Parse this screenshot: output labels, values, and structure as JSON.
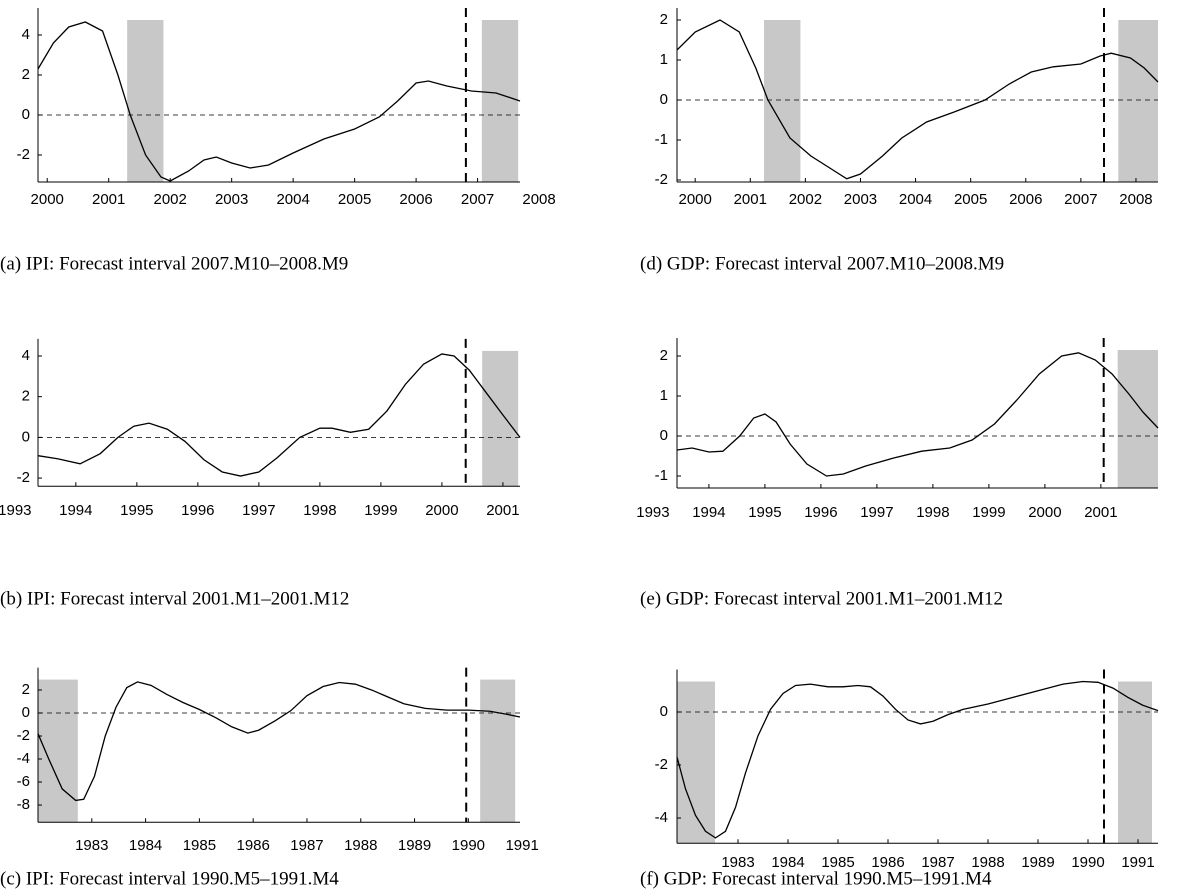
{
  "chart_data": [
    {
      "type": "line",
      "caption": "(a) IPI: Forecast interval 2007.M10–2008.M9",
      "color": "#000000",
      "band_color": "#c8c8c8",
      "x": [
        1999.85,
        2000.1,
        2000.35,
        2000.62,
        2000.9,
        2001.15,
        2001.35,
        2001.6,
        2001.85,
        2002.0,
        2002.3,
        2002.55,
        2002.75,
        2003.0,
        2003.3,
        2003.6,
        2004.0,
        2004.5,
        2005.0,
        2005.4,
        2005.7,
        2006.0,
        2006.2,
        2006.5,
        2006.9,
        2007.3,
        2007.69
      ],
      "values": [
        2.3,
        3.6,
        4.4,
        4.65,
        4.2,
        2.0,
        0,
        -2.0,
        -3.1,
        -3.3,
        -2.8,
        -2.25,
        -2.1,
        -2.4,
        -2.65,
        -2.5,
        -1.9,
        -1.2,
        -0.7,
        -0.1,
        0.7,
        1.6,
        1.7,
        1.45,
        1.2,
        1.1,
        0.7
      ],
      "xlim": [
        1999.85,
        2007.69
      ],
      "ylim": [
        -3.35,
        4.75
      ],
      "xticks": [
        2000,
        2001,
        2002,
        2003,
        2004,
        2005,
        2006,
        2007,
        2008
      ],
      "yticks": [
        -2,
        0,
        2,
        4
      ],
      "shaded": [
        [
          2001.3,
          2001.89
        ],
        [
          2007.07,
          2007.66
        ]
      ],
      "vline": 2006.81,
      "hline": 0
    },
    {
      "type": "line",
      "caption": "(b) IPI: Forecast interval 2001.M1–2001.M12",
      "color": "#000000",
      "band_color": "#c8c8c8",
      "x": [
        1993.38,
        1993.7,
        1994.07,
        1994.4,
        1994.69,
        1994.95,
        1995.2,
        1995.5,
        1995.79,
        1996.1,
        1996.4,
        1996.7,
        1997.0,
        1997.3,
        1997.67,
        1998.0,
        1998.2,
        1998.5,
        1998.8,
        1999.1,
        1999.4,
        1999.7,
        2000.0,
        2000.2,
        2000.45,
        2000.7,
        2001.0,
        2001.28
      ],
      "values": [
        -0.9,
        -1.05,
        -1.3,
        -0.8,
        0.0,
        0.55,
        0.7,
        0.4,
        -0.2,
        -1.1,
        -1.7,
        -1.9,
        -1.7,
        -1.0,
        0.0,
        0.45,
        0.45,
        0.25,
        0.4,
        1.3,
        2.6,
        3.6,
        4.1,
        4.0,
        3.3,
        2.3,
        1.1,
        0.0
      ],
      "xlim": [
        1993.38,
        2001.28
      ],
      "ylim": [
        -2.4,
        4.25
      ],
      "xticks": [
        1993,
        1994,
        1995,
        1996,
        1997,
        1998,
        1999,
        2000,
        2001
      ],
      "yticks": [
        -2,
        0,
        2,
        4
      ],
      "shaded": [
        [
          2000.66,
          2001.25
        ]
      ],
      "vline": 2000.39,
      "hline": 0
    },
    {
      "type": "line",
      "caption": "(c) IPI: Forecast interval 1990.M5–1991.M4",
      "color": "#000000",
      "band_color": "#c8c8c8",
      "x": [
        1982.0,
        1982.2,
        1982.45,
        1982.7,
        1982.85,
        1983.05,
        1983.25,
        1983.45,
        1983.65,
        1983.85,
        1984.1,
        1984.4,
        1984.7,
        1985.0,
        1985.3,
        1985.6,
        1985.9,
        1986.1,
        1986.4,
        1986.7,
        1987.0,
        1987.3,
        1987.6,
        1987.9,
        1988.2,
        1988.5,
        1988.8,
        1989.2,
        1989.6,
        1990.0,
        1990.4,
        1990.7,
        1990.96
      ],
      "values": [
        -1.8,
        -4.0,
        -6.6,
        -7.6,
        -7.5,
        -5.5,
        -2.0,
        0.5,
        2.2,
        2.7,
        2.4,
        1.6,
        0.9,
        0.3,
        -0.4,
        -1.2,
        -1.75,
        -1.5,
        -0.7,
        0.2,
        1.5,
        2.3,
        2.65,
        2.5,
        2.0,
        1.4,
        0.8,
        0.4,
        0.25,
        0.25,
        0.15,
        -0.1,
        -0.35
      ],
      "xlim": [
        1982.0,
        1990.96
      ],
      "ylim": [
        -9.5,
        2.9
      ],
      "xticks": [
        1983,
        1984,
        1985,
        1986,
        1987,
        1988,
        1989,
        1990,
        1991
      ],
      "yticks": [
        -8,
        -6,
        -4,
        -2,
        0,
        2
      ],
      "shaded": [
        [
          1982.0,
          1982.74
        ],
        [
          1990.22,
          1990.87
        ]
      ],
      "vline": 1989.96,
      "hline": 0
    },
    {
      "type": "line",
      "caption": "(d) GDP: Forecast interval 2007.M10–2008.M9",
      "color": "#000000",
      "band_color": "#c8c8c8",
      "x": [
        1999.67,
        2000.0,
        2000.45,
        2000.8,
        2001.1,
        2001.32,
        2001.72,
        2002.1,
        2002.5,
        2002.75,
        2003.0,
        2003.4,
        2003.75,
        2004.2,
        2004.7,
        2005.26,
        2005.7,
        2006.1,
        2006.5,
        2007.0,
        2007.35,
        2007.55,
        2007.9,
        2008.15,
        2008.4
      ],
      "values": [
        1.25,
        1.7,
        2.0,
        1.7,
        0.8,
        0.0,
        -0.95,
        -1.4,
        -1.75,
        -1.97,
        -1.85,
        -1.4,
        -0.95,
        -0.55,
        -0.3,
        0.0,
        0.4,
        0.7,
        0.83,
        0.9,
        1.1,
        1.17,
        1.05,
        0.8,
        0.45
      ],
      "xlim": [
        1999.67,
        2008.4
      ],
      "ylim": [
        -2.05,
        2.0
      ],
      "xticks": [
        2000,
        2001,
        2002,
        2003,
        2004,
        2005,
        2006,
        2007,
        2008
      ],
      "yticks": [
        -2,
        -1,
        0,
        1,
        2
      ],
      "shaded": [
        [
          2001.25,
          2001.91
        ],
        [
          2007.68,
          2008.4
        ]
      ],
      "vline": 2007.42,
      "hline": 0
    },
    {
      "type": "line",
      "caption": "(e) GDP: Forecast interval 2001.M1–2001.M12",
      "color": "#000000",
      "band_color": "#c8c8c8",
      "x": [
        1993.43,
        1993.7,
        1994.0,
        1994.25,
        1994.55,
        1994.8,
        1995.0,
        1995.2,
        1995.45,
        1995.75,
        1996.1,
        1996.4,
        1996.8,
        1997.3,
        1997.8,
        1998.3,
        1998.7,
        1999.1,
        1999.5,
        1999.9,
        2000.3,
        2000.6,
        2000.9,
        2001.2,
        2001.5,
        2001.75,
        2002.02
      ],
      "values": [
        -0.35,
        -0.3,
        -0.4,
        -0.38,
        0.0,
        0.45,
        0.55,
        0.35,
        -0.2,
        -0.7,
        -1.0,
        -0.95,
        -0.75,
        -0.55,
        -0.38,
        -0.3,
        -0.1,
        0.3,
        0.9,
        1.55,
        2.0,
        2.08,
        1.9,
        1.55,
        1.05,
        0.6,
        0.2
      ],
      "xlim": [
        1993.43,
        2002.02
      ],
      "ylim": [
        -1.3,
        2.15
      ],
      "xticks": [
        1993,
        1994,
        1995,
        1996,
        1997,
        1998,
        1999,
        2000,
        2001
      ],
      "yticks": [
        -1,
        0,
        1,
        2
      ],
      "shaded": [
        [
          2001.3,
          2002.02
        ]
      ],
      "vline": 2001.05,
      "hline": 0
    },
    {
      "type": "line",
      "caption": "(f) GDP: Forecast interval 1990.M5–1991.M4",
      "color": "#000000",
      "band_color": "#c8c8c8",
      "x": [
        1981.78,
        1981.95,
        1982.15,
        1982.35,
        1982.55,
        1982.75,
        1982.95,
        1983.15,
        1983.4,
        1983.65,
        1983.9,
        1984.15,
        1984.45,
        1984.8,
        1985.1,
        1985.4,
        1985.65,
        1985.9,
        1986.15,
        1986.4,
        1986.65,
        1986.9,
        1987.2,
        1987.5,
        1988.0,
        1988.5,
        1989.0,
        1989.5,
        1989.9,
        1990.2,
        1990.5,
        1990.8,
        1991.1,
        1991.4
      ],
      "values": [
        -1.7,
        -2.9,
        -3.9,
        -4.5,
        -4.75,
        -4.5,
        -3.6,
        -2.3,
        -0.9,
        0.1,
        0.7,
        1.0,
        1.05,
        0.95,
        0.95,
        1.0,
        0.95,
        0.6,
        0.1,
        -0.3,
        -0.45,
        -0.35,
        -0.1,
        0.1,
        0.3,
        0.55,
        0.8,
        1.05,
        1.15,
        1.12,
        0.9,
        0.55,
        0.25,
        0.05
      ],
      "xlim": [
        1981.78,
        1991.4
      ],
      "ylim": [
        -4.95,
        1.15
      ],
      "xticks": [
        1983,
        1984,
        1985,
        1986,
        1987,
        1988,
        1989,
        1990,
        1991
      ],
      "yticks": [
        -4,
        -2,
        0
      ],
      "shaded": [
        [
          1981.78,
          1982.54
        ],
        [
          1990.6,
          1991.28
        ]
      ],
      "vline": 1990.32,
      "hline": 0
    }
  ]
}
